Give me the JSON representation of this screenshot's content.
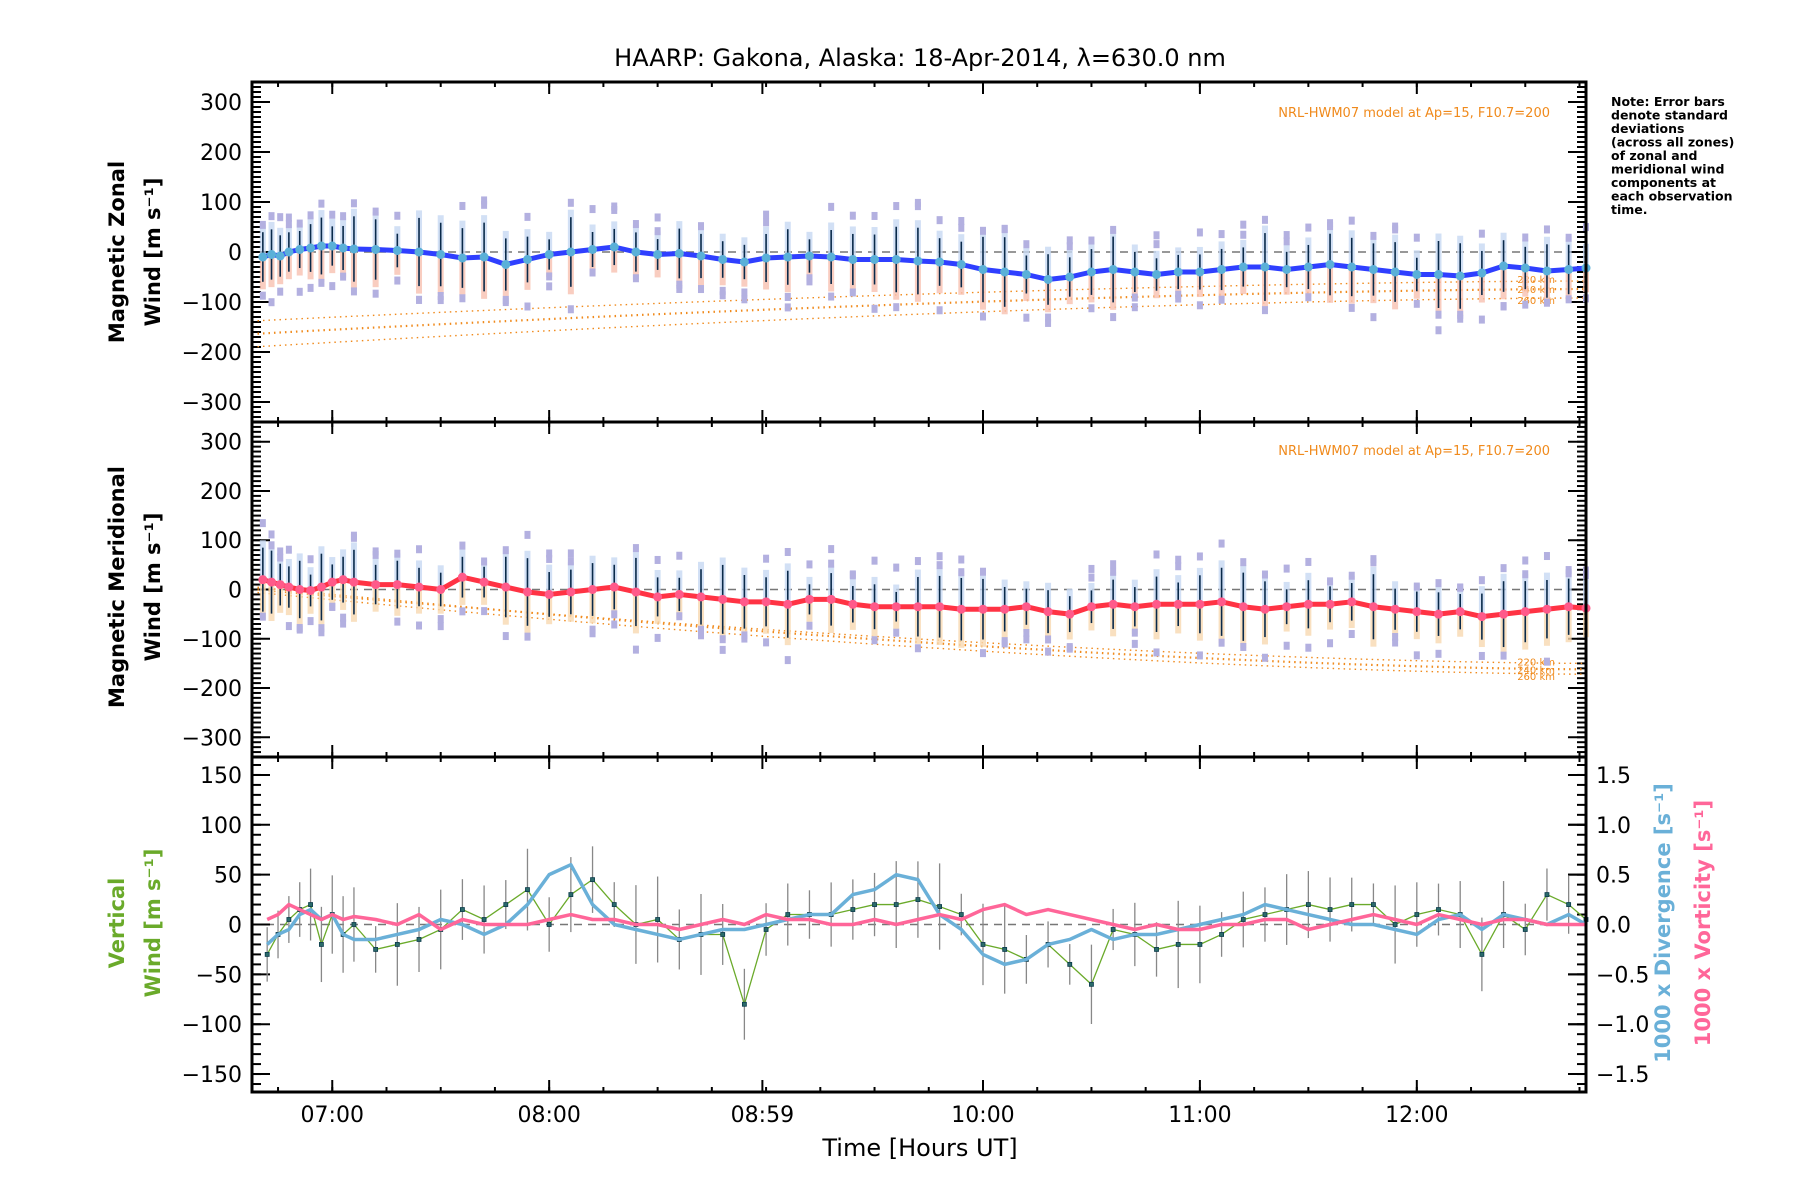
{
  "chart_data": [
    {
      "type": "line",
      "panel": "zonal",
      "title": "HAARP: Gakona,  Alaska: 18-Apr-2014, λ=630.0 nm",
      "ylabel_line1": "Magnetic Zonal",
      "ylabel_line2": "Wind [m s⁻¹]",
      "ylim": [
        -340,
        340
      ],
      "yticks": [
        300,
        200,
        100,
        0,
        -100,
        -200,
        -300
      ],
      "model_label": "NRL-HWM07 model at Ap=15, F10.7=200",
      "model_heights": [
        "220 km",
        "240 km",
        "260 km"
      ],
      "x_hours": [
        6.68,
        6.72,
        6.76,
        6.8,
        6.85,
        6.9,
        6.95,
        7.0,
        7.05,
        7.1,
        7.2,
        7.3,
        7.4,
        7.5,
        7.6,
        7.7,
        7.8,
        7.9,
        8.0,
        8.1,
        8.2,
        8.3,
        8.4,
        8.5,
        8.6,
        8.7,
        8.8,
        8.9,
        9.0,
        9.1,
        9.2,
        9.3,
        9.4,
        9.5,
        9.6,
        9.7,
        9.8,
        9.9,
        10.0,
        10.1,
        10.2,
        10.3,
        10.4,
        10.5,
        10.6,
        10.7,
        10.8,
        10.9,
        11.0,
        11.1,
        11.2,
        11.3,
        11.4,
        11.5,
        11.6,
        11.7,
        11.8,
        11.9,
        12.0,
        12.1,
        12.2,
        12.3,
        12.4,
        12.5,
        12.6,
        12.7,
        12.78
      ],
      "series": [
        {
          "name": "Zonal wind",
          "color": "#2f3fff",
          "values": [
            -10,
            -5,
            -8,
            0,
            5,
            8,
            12,
            12,
            8,
            6,
            5,
            3,
            0,
            -5,
            -12,
            -10,
            -25,
            -15,
            -5,
            0,
            5,
            10,
            0,
            -5,
            -3,
            -8,
            -15,
            -20,
            -12,
            -10,
            -8,
            -10,
            -15,
            -15,
            -15,
            -18,
            -20,
            -25,
            -35,
            -40,
            -45,
            -55,
            -50,
            -40,
            -35,
            -40,
            -45,
            -40,
            -40,
            -35,
            -30,
            -30,
            -35,
            -30,
            -25,
            -30,
            -35,
            -40,
            -45,
            -45,
            -48,
            -42,
            -28,
            -32,
            -38,
            -35,
            -32
          ]
        },
        {
          "name": "HWM07 220 km",
          "color": "#f08a1c",
          "values_start_end": [
            -138,
            -58
          ]
        },
        {
          "name": "HWM07 240 km",
          "color": "#f08a1c",
          "values_start_end": [
            -164,
            -74
          ]
        },
        {
          "name": "HWM07 260 km",
          "color": "#f08a1c",
          "values_start_end": [
            -190,
            -92
          ]
        }
      ]
    },
    {
      "type": "line",
      "panel": "meridional",
      "ylabel_line1": "Magnetic Meridional",
      "ylabel_line2": "Wind [m s⁻¹]",
      "ylim": [
        -340,
        340
      ],
      "yticks": [
        300,
        200,
        100,
        0,
        -100,
        -200,
        -300
      ],
      "model_label": "NRL-HWM07 model at Ap=15, F10.7=200",
      "model_heights": [
        "220 km",
        "240 km",
        "260 km"
      ],
      "x_hours": [
        6.68,
        6.72,
        6.76,
        6.8,
        6.85,
        6.9,
        6.95,
        7.0,
        7.05,
        7.1,
        7.2,
        7.3,
        7.4,
        7.5,
        7.6,
        7.7,
        7.8,
        7.9,
        8.0,
        8.1,
        8.2,
        8.3,
        8.4,
        8.5,
        8.6,
        8.7,
        8.8,
        8.9,
        9.0,
        9.1,
        9.2,
        9.3,
        9.4,
        9.5,
        9.6,
        9.7,
        9.8,
        9.9,
        10.0,
        10.1,
        10.2,
        10.3,
        10.4,
        10.5,
        10.6,
        10.7,
        10.8,
        10.9,
        11.0,
        11.1,
        11.2,
        11.3,
        11.4,
        11.5,
        11.6,
        11.7,
        11.8,
        11.9,
        12.0,
        12.1,
        12.2,
        12.3,
        12.4,
        12.5,
        12.6,
        12.7,
        12.78
      ],
      "series": [
        {
          "name": "Meridional wind",
          "color": "#ff3344",
          "values": [
            20,
            15,
            10,
            5,
            0,
            -2,
            5,
            15,
            20,
            15,
            10,
            10,
            5,
            0,
            25,
            15,
            5,
            -5,
            -10,
            -5,
            0,
            5,
            -5,
            -15,
            -10,
            -15,
            -20,
            -25,
            -25,
            -30,
            -20,
            -20,
            -30,
            -35,
            -35,
            -35,
            -35,
            -40,
            -40,
            -40,
            -35,
            -45,
            -50,
            -35,
            -30,
            -35,
            -30,
            -30,
            -30,
            -25,
            -35,
            -40,
            -35,
            -30,
            -30,
            -25,
            -35,
            -40,
            -45,
            -50,
            -45,
            -55,
            -50,
            -45,
            -40,
            -35,
            -38
          ]
        },
        {
          "name": "HWM07 220 km",
          "color": "#f08a1c",
          "values_start_end": [
            0,
            -150
          ]
        },
        {
          "name": "HWM07 240 km",
          "color": "#f08a1c",
          "values_start_end": [
            5,
            -162
          ]
        },
        {
          "name": "HWM07 260 km",
          "color": "#f08a1c",
          "values_start_end": [
            -5,
            -172
          ]
        }
      ]
    },
    {
      "type": "line",
      "panel": "vertical",
      "ylabel_line1": "Vertical",
      "ylabel_line2": "Wind [m s⁻¹]",
      "ylim": [
        -168,
        168
      ],
      "yticks": [
        150,
        100,
        50,
        0,
        -50,
        -100,
        -150
      ],
      "y2label_line1": "1000 x Divergence [s⁻¹]",
      "y2label_line2": "1000 x Vorticity [s⁻¹]",
      "y2lim": [
        -1.68,
        1.68
      ],
      "y2ticks": [
        "1.5",
        "1.0",
        "0.5",
        "0.0",
        "-0.5",
        "-1.0",
        "-1.5"
      ],
      "x_hours": [
        6.7,
        6.75,
        6.8,
        6.85,
        6.9,
        6.95,
        7.0,
        7.05,
        7.1,
        7.2,
        7.3,
        7.4,
        7.5,
        7.6,
        7.7,
        7.8,
        7.9,
        8.0,
        8.1,
        8.2,
        8.3,
        8.4,
        8.5,
        8.6,
        8.7,
        8.8,
        8.9,
        9.0,
        9.1,
        9.2,
        9.3,
        9.4,
        9.5,
        9.6,
        9.7,
        9.8,
        9.9,
        10.0,
        10.1,
        10.2,
        10.3,
        10.4,
        10.5,
        10.6,
        10.7,
        10.8,
        10.9,
        11.0,
        11.1,
        11.2,
        11.3,
        11.4,
        11.5,
        11.6,
        11.7,
        11.8,
        11.9,
        12.0,
        12.1,
        12.2,
        12.3,
        12.4,
        12.5,
        12.6,
        12.7,
        12.78
      ],
      "series": [
        {
          "name": "Vertical wind",
          "color": "#6aaa2a",
          "axis": "left",
          "values": [
            -30,
            -10,
            5,
            15,
            20,
            -20,
            10,
            -10,
            0,
            -25,
            -20,
            -15,
            -5,
            15,
            5,
            20,
            35,
            0,
            30,
            45,
            20,
            0,
            5,
            -15,
            -10,
            -10,
            -80,
            -5,
            10,
            10,
            10,
            15,
            20,
            20,
            25,
            18,
            10,
            -20,
            -25,
            -35,
            -20,
            -40,
            -60,
            -5,
            -10,
            -25,
            -20,
            -20,
            -10,
            5,
            10,
            15,
            20,
            15,
            20,
            20,
            0,
            10,
            15,
            10,
            -30,
            10,
            -5,
            30,
            20,
            5
          ]
        },
        {
          "name": "1000 x Divergence",
          "color": "#6ab0d8",
          "axis": "right",
          "values": [
            -0.2,
            -0.1,
            -0.05,
            0.1,
            0.15,
            0.05,
            0.1,
            -0.1,
            -0.15,
            -0.15,
            -0.1,
            -0.05,
            0.05,
            0.0,
            -0.1,
            0.0,
            0.2,
            0.5,
            0.6,
            0.2,
            0.0,
            -0.05,
            -0.1,
            -0.15,
            -0.1,
            -0.05,
            -0.05,
            0.0,
            0.05,
            0.1,
            0.1,
            0.3,
            0.35,
            0.5,
            0.45,
            0.1,
            -0.05,
            -0.3,
            -0.4,
            -0.35,
            -0.2,
            -0.15,
            -0.05,
            -0.15,
            -0.1,
            -0.1,
            -0.05,
            0.0,
            0.05,
            0.1,
            0.2,
            0.15,
            0.1,
            0.05,
            0.0,
            0.0,
            -0.05,
            -0.1,
            0.05,
            0.1,
            -0.05,
            0.1,
            0.05,
            0.0,
            0.1,
            0.0
          ]
        },
        {
          "name": "1000 x Vorticity",
          "color": "#ff6699",
          "axis": "right",
          "values": [
            0.05,
            0.1,
            0.2,
            0.15,
            0.1,
            0.05,
            0.1,
            0.05,
            0.08,
            0.05,
            0.0,
            0.1,
            -0.05,
            0.05,
            0.0,
            0.0,
            0.0,
            0.05,
            0.1,
            0.05,
            0.05,
            0.0,
            0.0,
            -0.05,
            0.0,
            0.05,
            0.0,
            0.1,
            0.05,
            0.05,
            0.0,
            0.0,
            0.05,
            0.0,
            0.05,
            0.1,
            0.05,
            0.15,
            0.2,
            0.1,
            0.15,
            0.1,
            0.05,
            0.0,
            -0.05,
            0.0,
            -0.05,
            -0.05,
            0.0,
            0.0,
            0.05,
            0.05,
            -0.05,
            0.0,
            0.05,
            0.1,
            0.05,
            0.0,
            0.1,
            0.05,
            0.0,
            0.05,
            0.05,
            0.0,
            0.0,
            0.0
          ]
        }
      ]
    }
  ],
  "xaxis": {
    "label": "Time [Hours UT]",
    "xlim_hours": [
      6.63,
      12.78
    ],
    "tick_hours": [
      7.0,
      8.0,
      8.983,
      10.0,
      11.0,
      12.0
    ],
    "tick_labels": [
      "07:00",
      "08:00",
      "08:59",
      "10:00",
      "11:00",
      "12:00"
    ]
  },
  "note": [
    "Note: Error bars",
    "denote standard",
    "deviations",
    "(across all zones)",
    "of zonal and",
    "meridional wind",
    "components at",
    "each observation",
    "time."
  ]
}
